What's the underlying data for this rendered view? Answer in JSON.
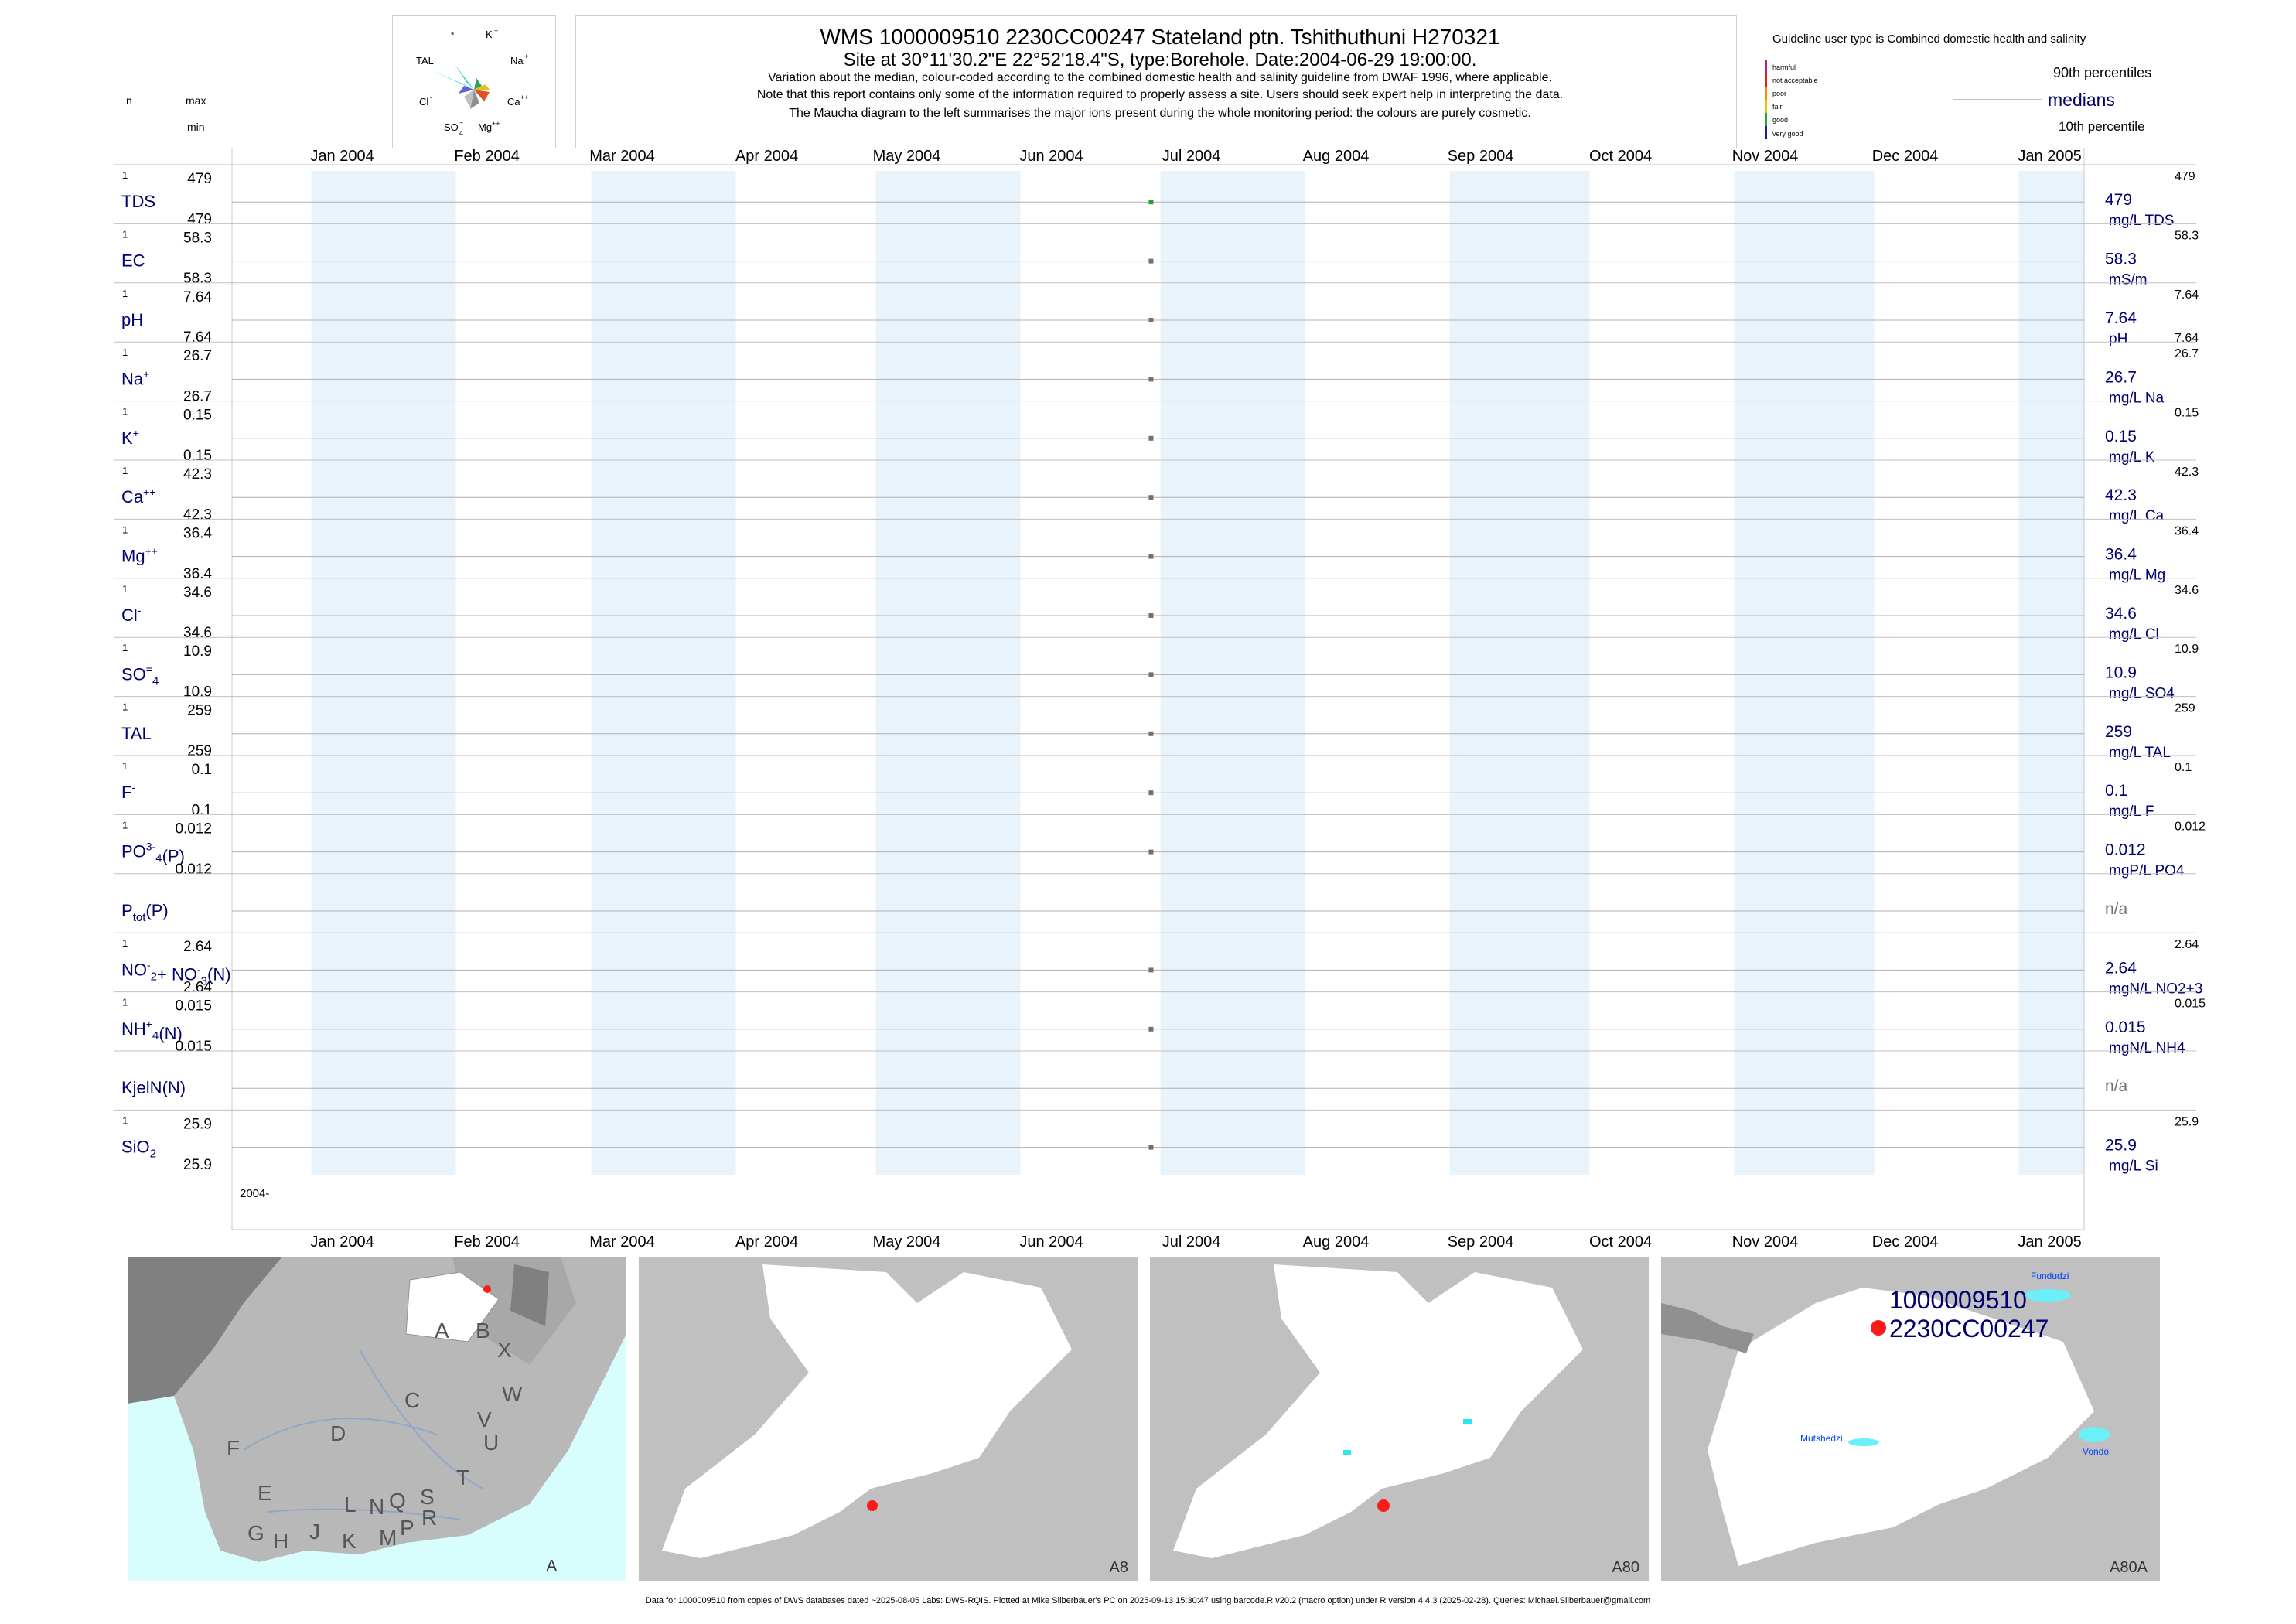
{
  "header": {
    "title": "WMS 1000009510 2230CC00247 Stateland ptn. Tshithuthuni H270321",
    "subtitle": "Site at 30°11'30.2\"E 22°52'18.4\"S, type:Borehole. Date:2004-06-29 19:00:00.",
    "note1": "Variation about the median,  colour-coded according to the combined domestic health and salinity guideline from DWAF 1996, where applicable.",
    "note2": "Note that this report contains only some of the information required to properly assess a site. Users should seek expert help in interpreting the data.",
    "note3": "The Maucha diagram to the left summarises the major ions present during the whole monitoring period: the colours are purely cosmetic."
  },
  "left_header": {
    "n": "n",
    "max": "max",
    "min": "min"
  },
  "maucha": {
    "star": "*",
    "k": "K",
    "na": "Na",
    "ca": "Ca",
    "mg": "Mg",
    "so4": "SO",
    "cl": "Cl",
    "tal": "TAL"
  },
  "legend": {
    "guideline": "Guideline user type is Combined domestic health and salinity",
    "classes": [
      "harmful",
      "not acceptable",
      "poor",
      "fair",
      "good",
      "very good"
    ],
    "class_colors": [
      "#b0208a",
      "#e02020",
      "#ff8c00",
      "#e6c800",
      "#2e9e2e",
      "#1a1a9e"
    ],
    "p90": "90th percentiles",
    "medians": "medians",
    "p10": "10th percentile"
  },
  "footer": "Data for 1000009510 from copies of DWS databases dated ~2025-08-05 Labs: DWS-RQIS. Plotted at Mike Silberbauer's PC on 2025-09-13 15:30:47 using barcode.R v20.2 (macro option) under R version 4.4.3 (2025-02-28). Queries: Michael.Silberbauer@gmail.com",
  "bottom_year_label": "2004-",
  "maps": [
    {
      "label": "A",
      "letters": [
        "A",
        "B",
        "X",
        "C",
        "W",
        "D",
        "V",
        "U",
        "F",
        "T",
        "E",
        "L",
        "N",
        "Q",
        "S",
        "R",
        "G",
        "H",
        "J",
        "K",
        "M",
        "P"
      ]
    },
    {
      "label": "A8"
    },
    {
      "label": "A80"
    },
    {
      "label": "A80A",
      "site_id": "1000009510",
      "site_code": "2230CC00247",
      "dams": [
        "Fundudzi",
        "Mutshedzi",
        "Vondo"
      ]
    }
  ],
  "chart_data": {
    "type": "scatter",
    "x_range": [
      "2003-12-15",
      "2005-01-15"
    ],
    "month_ticks": [
      "Jan 2004",
      "Feb 2004",
      "Mar 2004",
      "Apr 2004",
      "May 2004",
      "Jun 2004",
      "Jul 2004",
      "Aug 2004",
      "Sep 2004",
      "Oct 2004",
      "Nov 2004",
      "Dec 2004",
      "Jan 2005"
    ],
    "sample_date": "2004-06-29",
    "colors": {
      "good": "#2e9e2e",
      "unrated": "#707070",
      "band": "#e8f3fc",
      "label": "#000070"
    },
    "variables": [
      {
        "name": "TDS",
        "sup": "",
        "sub": "",
        "n": "1",
        "max": "479",
        "min": "479",
        "median": "479",
        "p90": "479",
        "p10": "",
        "unit": "mg/L TDS",
        "value": 479,
        "class": "good"
      },
      {
        "name": "EC",
        "sup": "",
        "sub": "",
        "n": "1",
        "max": "58.3",
        "min": "58.3",
        "median": "58.3",
        "p90": "58.3",
        "p10": "",
        "unit": "mS/m",
        "value": 58.3,
        "class": "unrated"
      },
      {
        "name": "pH",
        "sup": "",
        "sub": "",
        "n": "1",
        "max": "7.64",
        "min": "7.64",
        "median": "7.64",
        "p90": "7.64",
        "p10": "7.64",
        "unit": "pH",
        "value": 7.64,
        "class": "unrated"
      },
      {
        "name": "Na",
        "sup": "+",
        "sub": "",
        "n": "1",
        "max": "26.7",
        "min": "26.7",
        "median": "26.7",
        "p90": "26.7",
        "p10": "",
        "unit": "mg/L Na",
        "value": 26.7,
        "class": "unrated"
      },
      {
        "name": "K",
        "sup": "+",
        "sub": "",
        "n": "1",
        "max": "0.15",
        "min": "0.15",
        "median": "0.15",
        "p90": "0.15",
        "p10": "",
        "unit": "mg/L K",
        "value": 0.15,
        "class": "unrated"
      },
      {
        "name": "Ca",
        "sup": "++",
        "sub": "",
        "n": "1",
        "max": "42.3",
        "min": "42.3",
        "median": "42.3",
        "p90": "42.3",
        "p10": "",
        "unit": "mg/L Ca",
        "value": 42.3,
        "class": "unrated"
      },
      {
        "name": "Mg",
        "sup": "++",
        "sub": "",
        "n": "1",
        "max": "36.4",
        "min": "36.4",
        "median": "36.4",
        "p90": "36.4",
        "p10": "",
        "unit": "mg/L Mg",
        "value": 36.4,
        "class": "unrated"
      },
      {
        "name": "Cl",
        "sup": "-",
        "sub": "",
        "n": "1",
        "max": "34.6",
        "min": "34.6",
        "median": "34.6",
        "p90": "34.6",
        "p10": "",
        "unit": "mg/L Cl",
        "value": 34.6,
        "class": "unrated"
      },
      {
        "name": "SO",
        "sup": "=",
        "sub": "4",
        "n": "1",
        "max": "10.9",
        "min": "10.9",
        "median": "10.9",
        "p90": "10.9",
        "p10": "",
        "unit": "mg/L SO4",
        "value": 10.9,
        "class": "unrated"
      },
      {
        "name": "TAL",
        "sup": "",
        "sub": "",
        "n": "1",
        "max": "259",
        "min": "259",
        "median": "259",
        "p90": "259",
        "p10": "",
        "unit": "mg/L TAL",
        "value": 259,
        "class": "unrated"
      },
      {
        "name": "F",
        "sup": "-",
        "sub": "",
        "n": "1",
        "max": "0.1",
        "min": "0.1",
        "median": "0.1",
        "p90": "0.1",
        "p10": "",
        "unit": "mg/L F",
        "value": 0.1,
        "class": "unrated"
      },
      {
        "name": "PO",
        "sup": "3-",
        "sub": "4",
        "tail": "(P)",
        "n": "1",
        "max": "0.012",
        "min": "0.012",
        "median": "0.012",
        "p90": "0.012",
        "p10": "",
        "unit": "mgP/L PO4",
        "value": 0.012,
        "class": "unrated"
      },
      {
        "name": "P",
        "sup": "",
        "sub": "tot",
        "tail": "(P)",
        "n": "",
        "max": "",
        "min": "",
        "median": "n/a",
        "p90": "",
        "p10": "",
        "unit": "",
        "value": null,
        "class": "unrated"
      },
      {
        "name": "NO",
        "sup": "-",
        "sub": "2",
        "tail": "+ NO",
        "tail_sup": "-",
        "tail_sub": "3",
        "tail2": "(N)",
        "n": "1",
        "max": "2.64",
        "min": "2.64",
        "median": "2.64",
        "p90": "2.64",
        "p10": "",
        "unit": "mgN/L NO2+3",
        "value": 2.64,
        "class": "unrated"
      },
      {
        "name": "NH",
        "sup": "+",
        "sub": "4",
        "tail": "(N)",
        "n": "1",
        "max": "0.015",
        "min": "0.015",
        "median": "0.015",
        "p90": "0.015",
        "p10": "",
        "unit": "mgN/L NH4",
        "value": 0.015,
        "class": "unrated"
      },
      {
        "name": "KjelN(N)",
        "sup": "",
        "sub": "",
        "n": "",
        "max": "",
        "min": "",
        "median": "n/a",
        "p90": "",
        "p10": "",
        "unit": "",
        "value": null,
        "class": "unrated"
      },
      {
        "name": "SiO",
        "sup": "",
        "sub": "2",
        "n": "1",
        "max": "25.9",
        "min": "25.9",
        "median": "25.9",
        "p90": "25.9",
        "p10": "",
        "unit": "mg/L Si",
        "value": 25.9,
        "class": "unrated"
      }
    ]
  }
}
